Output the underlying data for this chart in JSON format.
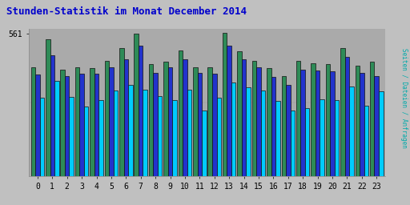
{
  "title": "Stunden-Statistik im Monat December 2014",
  "title_color": "#0000cc",
  "ylabel_right": "Seiten / Dateien / Anfragen",
  "ytick_val": 561,
  "hours": [
    0,
    1,
    2,
    3,
    4,
    5,
    6,
    7,
    8,
    9,
    10,
    11,
    12,
    13,
    14,
    15,
    16,
    17,
    18,
    19,
    20,
    21,
    22,
    23
  ],
  "seiten": [
    430,
    540,
    420,
    430,
    425,
    455,
    505,
    560,
    440,
    450,
    495,
    430,
    430,
    565,
    490,
    455,
    425,
    395,
    455,
    445,
    440,
    505,
    435,
    450
  ],
  "dateien": [
    400,
    475,
    395,
    402,
    403,
    428,
    460,
    513,
    405,
    428,
    460,
    407,
    402,
    512,
    460,
    428,
    390,
    358,
    418,
    417,
    412,
    468,
    408,
    393
  ],
  "anfragen": [
    310,
    375,
    313,
    273,
    298,
    338,
    358,
    340,
    315,
    298,
    340,
    258,
    310,
    370,
    350,
    338,
    295,
    258,
    268,
    303,
    298,
    353,
    278,
    335
  ],
  "color_seiten": "#2e8b57",
  "color_dateien": "#2233cc",
  "color_anfragen": "#00ccff",
  "bg_color": "#c0c0c0",
  "plot_bg": "#aaaaaa",
  "border_color": "#888888",
  "ymax": 580,
  "ymin": 0
}
